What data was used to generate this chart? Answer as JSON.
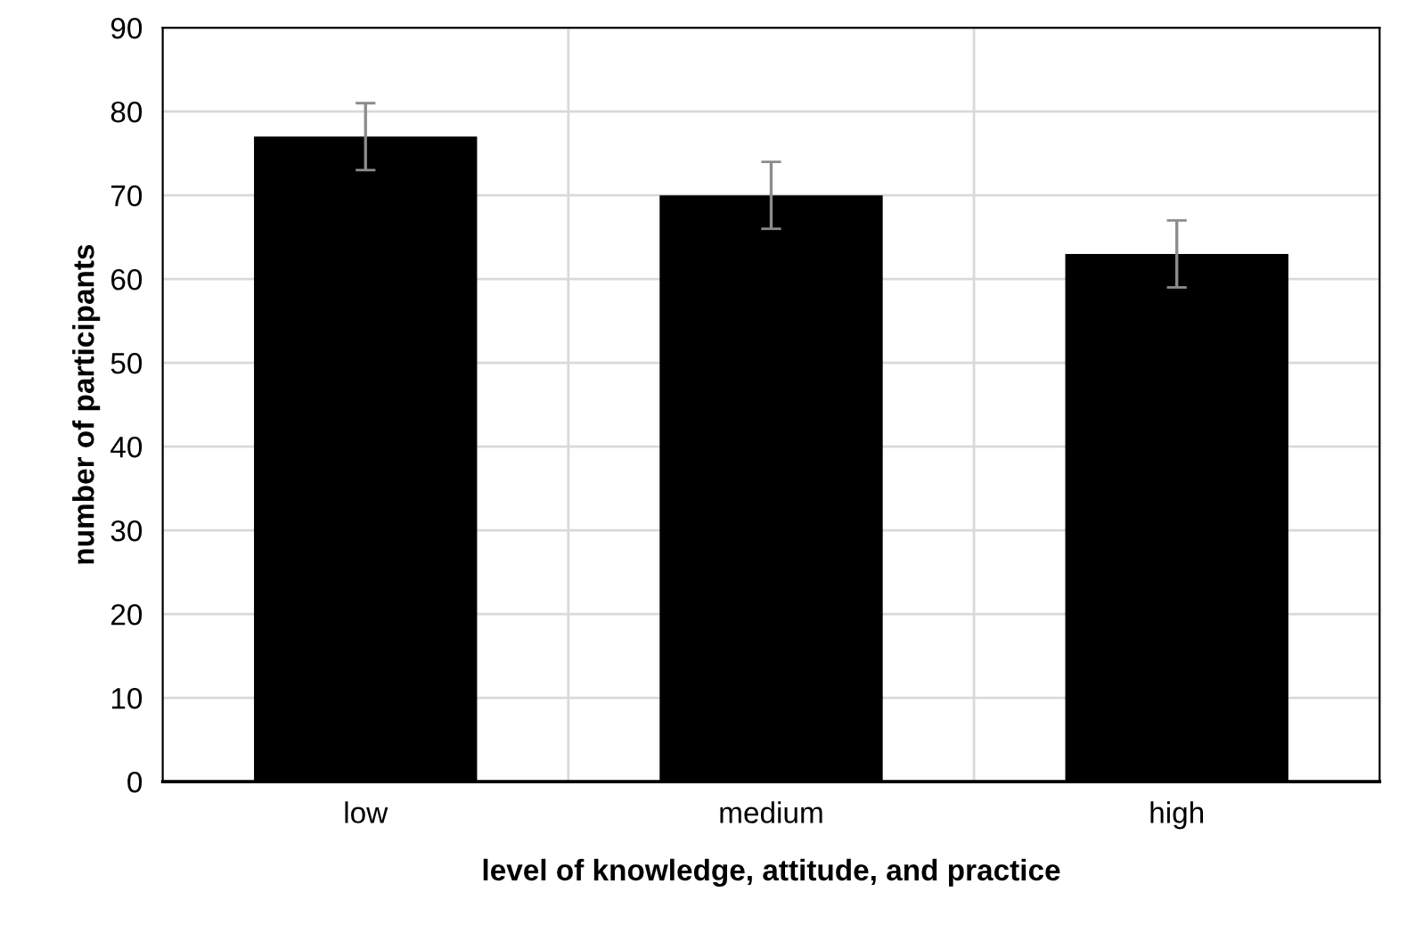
{
  "chart_data": {
    "type": "bar",
    "xlabel": "level of knowledge, attitude, and practice",
    "ylabel": "number of participants",
    "categories": [
      "low",
      "medium",
      "high"
    ],
    "values": [
      77,
      70,
      63
    ],
    "errors": [
      4,
      4,
      4
    ],
    "color": "#000000",
    "ylim": [
      0,
      90
    ],
    "yticks": [
      0,
      10,
      20,
      30,
      40,
      50,
      60,
      70,
      80,
      90
    ],
    "grid": true
  }
}
